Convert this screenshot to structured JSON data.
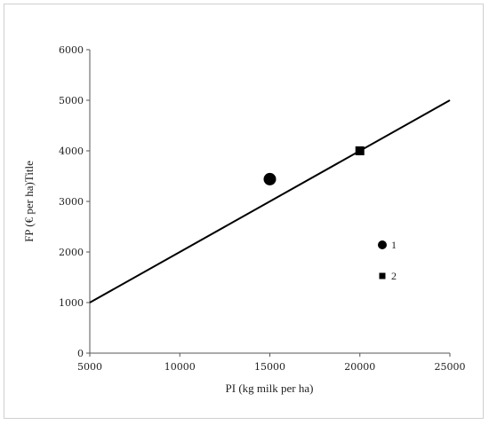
{
  "chart_data": {
    "type": "scatter",
    "xlabel": "PI (kg milk per ha)",
    "ylabel": "FP (€ per ha)Title",
    "xlim": [
      5000,
      25000
    ],
    "ylim": [
      0,
      6000
    ],
    "xticks": [
      5000,
      10000,
      15000,
      20000,
      25000
    ],
    "yticks": [
      0,
      1000,
      2000,
      3000,
      4000,
      5000,
      6000
    ],
    "grid": false,
    "legend_position": "right",
    "series": [
      {
        "name": "1",
        "marker": "circle",
        "points": [
          {
            "x": 15000,
            "y": 3440
          }
        ]
      },
      {
        "name": "2",
        "marker": "square",
        "points": [
          {
            "x": 20000,
            "y": 4000
          }
        ]
      }
    ],
    "reference_line": {
      "points": [
        {
          "x": 5000,
          "y": 1000
        },
        {
          "x": 25000,
          "y": 5000
        }
      ]
    },
    "colors": {
      "marks": "#000000",
      "axis": "#555555"
    }
  }
}
